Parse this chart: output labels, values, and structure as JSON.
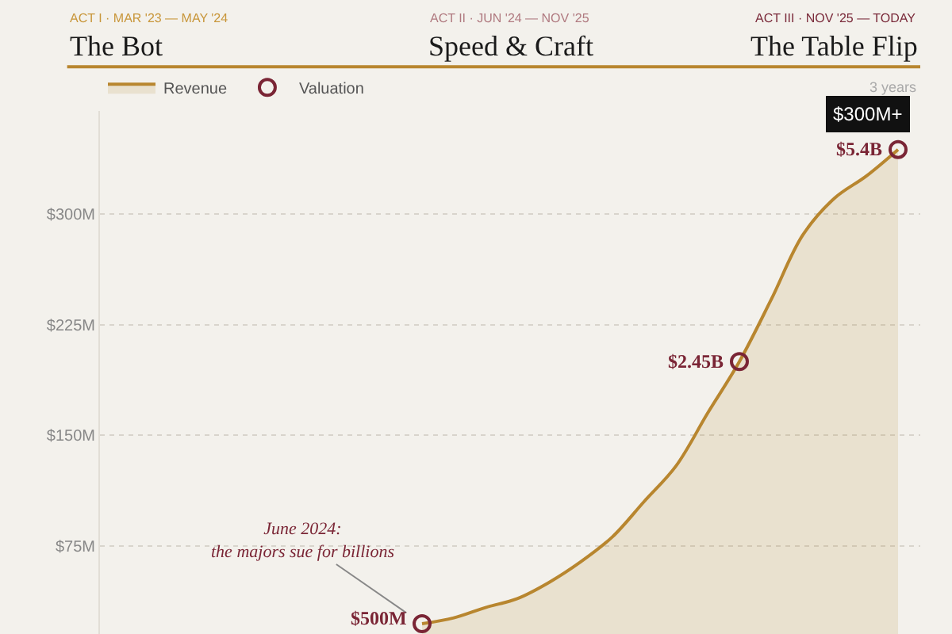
{
  "chart_data": {
    "type": "area",
    "categories": [
      null,
      null,
      null,
      null,
      null,
      null,
      null,
      null,
      null,
      null,
      null,
      null,
      null,
      null,
      null,
      null
    ],
    "series": [
      {
        "name": "Revenue",
        "color": "#b8862f",
        "values": [
          22,
          26,
          33,
          39,
          50,
          64,
          81,
          105,
          129,
          165,
          200,
          242,
          286,
          311,
          326,
          344
        ]
      },
      {
        "name": "Valuation",
        "type": "scatter",
        "color": "#7a2535",
        "values": [
          22,
          null,
          null,
          null,
          null,
          null,
          null,
          null,
          null,
          null,
          200,
          null,
          null,
          null,
          null,
          344
        ]
      }
    ],
    "ylim": [
      15,
      370
    ],
    "yticks": [
      {
        "value": 75,
        "label": "$75M"
      },
      {
        "value": 150,
        "label": "$150M"
      },
      {
        "value": 225,
        "label": "$225M"
      },
      {
        "value": 300,
        "label": "$300M"
      }
    ],
    "grid": "y",
    "legend": "top left",
    "tick_labels": "y",
    "annotations": [
      "ACT I · MAR '23 — MAY '24",
      "The Bot",
      "ACT II · JUN '24 — NOV '25",
      "Speed & Craft",
      "ACT III · NOV '25 — TODAY",
      "The Table Flip",
      "3 years",
      "June 2024:\nthe majors sue for billions",
      "$500M",
      "$2.45B",
      "$5.4B",
      "$300M+"
    ]
  }
}
